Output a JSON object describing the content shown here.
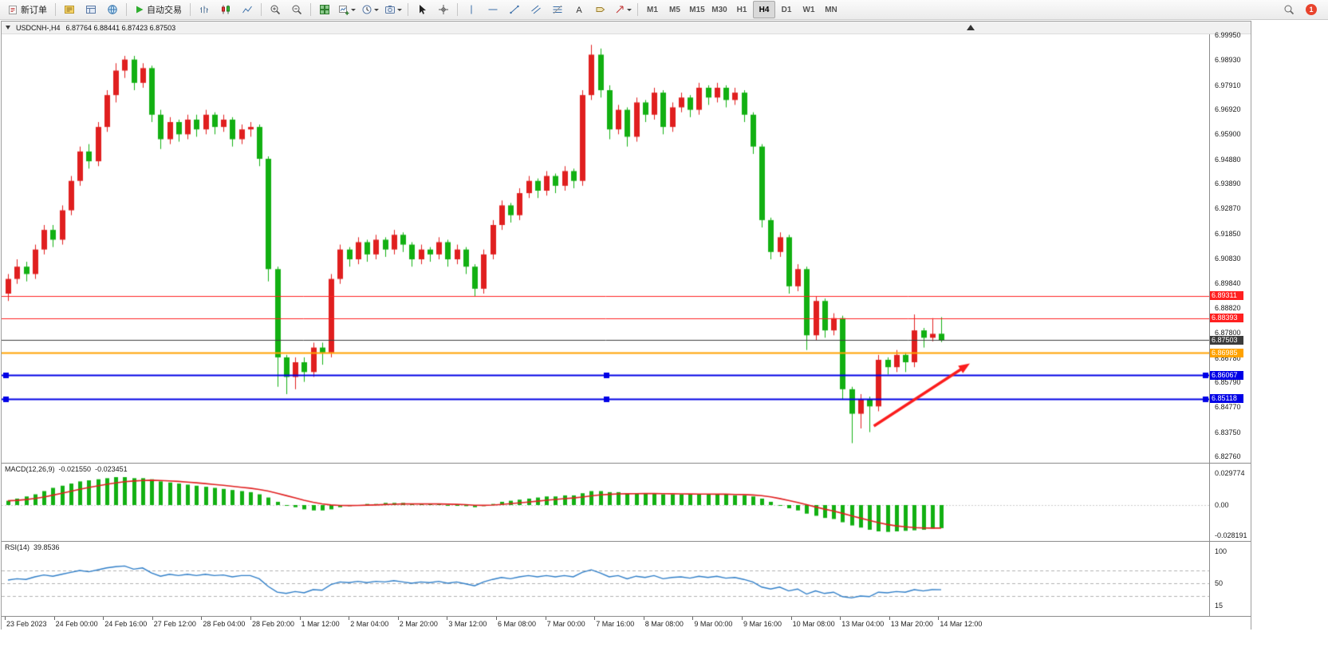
{
  "toolbar": {
    "new_order_label": "新订单",
    "autotrade_label": "自动交易",
    "timeframes": [
      "M1",
      "M5",
      "M15",
      "M30",
      "H1",
      "H4",
      "D1",
      "W1",
      "MN"
    ],
    "active_timeframe": "H4",
    "notification_count": "1",
    "icon_names": [
      "new-order-icon",
      "market-watch-icon",
      "data-window-icon",
      "navigator-icon",
      "play-icon",
      "bar-chart-icon",
      "candlestick-icon",
      "line-chart-icon",
      "zoom-in-icon",
      "zoom-out-icon",
      "tile-windows-icon",
      "new-chart-icon",
      "clock-icon",
      "snapshot-icon",
      "cursor-icon",
      "crosshair-icon",
      "vertical-line-icon",
      "horizontal-line-icon",
      "trendline-icon",
      "channel-icon",
      "fibonacci-icon",
      "text-icon",
      "label-icon",
      "shapes-icon",
      "search-icon"
    ]
  },
  "chart": {
    "title": "USDCNH-,H4",
    "ohlc_text": "6.87764 6.88441 6.87423 6.87503"
  },
  "chart_data": {
    "type": "candlestick",
    "symbol": "USDCNH-",
    "timeframe": "H4",
    "colors": {
      "up": "#e01f1f",
      "down": "#12b012",
      "macd_hist": "#12b012",
      "macd_signal": "#e02020",
      "rsi": "#2f7ec8"
    },
    "price_axis": {
      "min": 6.825,
      "max": 6.9998,
      "ticks": [
        "6.99950",
        "6.98930",
        "6.97910",
        "6.96920",
        "6.95900",
        "6.94880",
        "6.93890",
        "6.92870",
        "6.91850",
        "6.90830",
        "6.89840",
        "6.88820",
        "6.87800",
        "6.86780",
        "6.85790",
        "6.84770",
        "6.83750",
        "6.82760"
      ]
    },
    "candles": [
      [
        6.894,
        6.902,
        6.891,
        6.9
      ],
      [
        6.9,
        6.908,
        6.898,
        6.905
      ],
      [
        6.905,
        6.907,
        6.899,
        6.902
      ],
      [
        6.902,
        6.914,
        6.9,
        6.912
      ],
      [
        6.912,
        6.922,
        6.91,
        6.92
      ],
      [
        6.92,
        6.922,
        6.913,
        6.916
      ],
      [
        6.916,
        6.93,
        6.914,
        6.928
      ],
      [
        6.928,
        6.942,
        6.926,
        6.94
      ],
      [
        6.94,
        6.954,
        6.938,
        6.952
      ],
      [
        6.952,
        6.955,
        6.945,
        6.948
      ],
      [
        6.948,
        6.964,
        6.946,
        6.962
      ],
      [
        6.962,
        6.977,
        6.96,
        6.975
      ],
      [
        6.975,
        6.988,
        6.972,
        6.985
      ],
      [
        6.985,
        6.991,
        6.982,
        6.9895
      ],
      [
        6.9895,
        6.991,
        6.977,
        6.98
      ],
      [
        6.98,
        6.988,
        6.978,
        6.986
      ],
      [
        6.986,
        6.987,
        6.964,
        6.967
      ],
      [
        6.967,
        6.969,
        6.953,
        6.957
      ],
      [
        6.957,
        6.966,
        6.955,
        6.964
      ],
      [
        6.964,
        6.965,
        6.956,
        6.959
      ],
      [
        6.959,
        6.967,
        6.957,
        6.965
      ],
      [
        6.965,
        6.967,
        6.958,
        6.961
      ],
      [
        6.961,
        6.969,
        6.959,
        6.967
      ],
      [
        6.967,
        6.968,
        6.959,
        6.962
      ],
      [
        6.962,
        6.967,
        6.96,
        6.965
      ],
      [
        6.965,
        6.966,
        6.954,
        6.957
      ],
      [
        6.957,
        6.963,
        6.955,
        6.961
      ],
      [
        6.961,
        6.964,
        6.958,
        6.962
      ],
      [
        6.962,
        6.963,
        6.946,
        6.949
      ],
      [
        6.949,
        6.95,
        6.899,
        6.904
      ],
      [
        6.904,
        6.905,
        6.856,
        6.868
      ],
      [
        6.868,
        6.869,
        6.853,
        6.86
      ],
      [
        6.86,
        6.868,
        6.855,
        6.866
      ],
      [
        6.866,
        6.868,
        6.858,
        6.862
      ],
      [
        6.862,
        6.874,
        6.86,
        6.872
      ],
      [
        6.872,
        6.874,
        6.865,
        6.87
      ],
      [
        6.87,
        6.902,
        6.868,
        6.9
      ],
      [
        6.9,
        6.914,
        6.898,
        6.912
      ],
      [
        6.912,
        6.913,
        6.905,
        6.908
      ],
      [
        6.908,
        6.917,
        6.906,
        6.915
      ],
      [
        6.915,
        6.916,
        6.907,
        6.91
      ],
      [
        6.91,
        6.918,
        6.908,
        6.916
      ],
      [
        6.916,
        6.917,
        6.909,
        6.912
      ],
      [
        6.912,
        6.92,
        6.91,
        6.918
      ],
      [
        6.918,
        6.919,
        6.911,
        6.914
      ],
      [
        6.914,
        6.915,
        6.905,
        6.908
      ],
      [
        6.908,
        6.914,
        6.906,
        6.912
      ],
      [
        6.912,
        6.913,
        6.907,
        6.91
      ],
      [
        6.91,
        6.917,
        6.908,
        6.915
      ],
      [
        6.915,
        6.916,
        6.905,
        6.908
      ],
      [
        6.908,
        6.914,
        6.906,
        6.912
      ],
      [
        6.912,
        6.913,
        6.902,
        6.905
      ],
      [
        6.905,
        6.906,
        6.893,
        6.896
      ],
      [
        6.896,
        6.912,
        6.894,
        6.91
      ],
      [
        6.91,
        6.924,
        6.908,
        6.922
      ],
      [
        6.922,
        6.932,
        6.92,
        6.93
      ],
      [
        6.93,
        6.931,
        6.923,
        6.926
      ],
      [
        6.926,
        6.937,
        6.924,
        6.935
      ],
      [
        6.935,
        6.942,
        6.933,
        6.94
      ],
      [
        6.94,
        6.941,
        6.933,
        6.936
      ],
      [
        6.936,
        6.944,
        6.934,
        6.942
      ],
      [
        6.942,
        6.943,
        6.935,
        6.938
      ],
      [
        6.938,
        6.946,
        6.936,
        6.944
      ],
      [
        6.944,
        6.945,
        6.937,
        6.94
      ],
      [
        6.94,
        6.977,
        6.938,
        6.975
      ],
      [
        6.975,
        6.9955,
        6.973,
        6.9915
      ],
      [
        6.9915,
        6.994,
        6.974,
        6.977
      ],
      [
        6.977,
        6.979,
        6.957,
        6.961
      ],
      [
        6.961,
        6.971,
        6.959,
        6.969
      ],
      [
        6.969,
        6.97,
        6.954,
        6.958
      ],
      [
        6.958,
        6.974,
        6.956,
        6.972
      ],
      [
        6.972,
        6.973,
        6.964,
        6.967
      ],
      [
        6.967,
        6.978,
        6.965,
        6.976
      ],
      [
        6.976,
        6.977,
        6.959,
        6.962
      ],
      [
        6.962,
        6.972,
        6.96,
        6.97
      ],
      [
        6.97,
        6.976,
        6.968,
        6.974
      ],
      [
        6.974,
        6.975,
        6.966,
        6.969
      ],
      [
        6.969,
        6.98,
        6.967,
        6.978
      ],
      [
        6.978,
        6.979,
        6.971,
        6.974
      ],
      [
        6.974,
        6.98,
        6.972,
        6.978
      ],
      [
        6.978,
        6.979,
        6.97,
        6.973
      ],
      [
        6.973,
        6.978,
        6.971,
        6.976
      ],
      [
        6.976,
        6.977,
        6.964,
        6.967
      ],
      [
        6.967,
        6.968,
        6.951,
        6.954
      ],
      [
        6.954,
        6.955,
        6.921,
        6.924
      ],
      [
        6.924,
        6.925,
        6.908,
        6.911
      ],
      [
        6.911,
        6.919,
        6.909,
        6.917
      ],
      [
        6.917,
        6.918,
        6.894,
        6.897
      ],
      [
        6.897,
        6.906,
        6.895,
        6.904
      ],
      [
        6.904,
        6.905,
        6.871,
        6.877
      ],
      [
        6.877,
        6.893,
        6.875,
        6.891
      ],
      [
        6.891,
        6.892,
        6.876,
        6.879
      ],
      [
        6.879,
        6.886,
        6.877,
        6.884
      ],
      [
        6.884,
        6.885,
        6.851,
        6.855
      ],
      [
        6.855,
        6.856,
        6.833,
        6.845
      ],
      [
        6.845,
        6.853,
        6.839,
        6.851
      ],
      [
        6.851,
        6.852,
        6.8375,
        6.848
      ],
      [
        6.848,
        6.869,
        6.846,
        6.867
      ],
      [
        6.867,
        6.868,
        6.861,
        6.864
      ],
      [
        6.864,
        6.871,
        6.862,
        6.869
      ],
      [
        6.869,
        6.87,
        6.862,
        6.866
      ],
      [
        6.866,
        6.8855,
        6.864,
        6.879
      ],
      [
        6.879,
        6.88,
        6.872,
        6.876
      ],
      [
        6.876,
        6.884,
        6.8745,
        6.8776
      ],
      [
        6.87764,
        6.88441,
        6.87423,
        6.87503
      ]
    ],
    "hlines": [
      {
        "price": 6.89311,
        "label": "6.89311",
        "color": "#ff2020",
        "width": 1
      },
      {
        "price": 6.88393,
        "label": "6.88393",
        "color": "#ff2020",
        "width": 1
      },
      {
        "price": 6.87503,
        "label": "6.87503",
        "color": "#3c3c3c",
        "width": 1
      },
      {
        "price": 6.86985,
        "label": "6.86985",
        "color": "#ffa200",
        "width": 2
      },
      {
        "price": 6.86067,
        "label": "6.86067",
        "color": "#0000e6",
        "width": 2,
        "handles": true
      },
      {
        "price": 6.85118,
        "label": "6.85118",
        "color": "#0000e6",
        "width": 2,
        "handles": true
      }
    ],
    "arrow": {
      "from_bar": 96.5,
      "from_price": 6.84,
      "to_bar": 107.2,
      "to_price": 6.8655,
      "color": "#fb1d1d"
    },
    "time_axis": [
      "23 Feb 2023",
      "24 Feb 00:00",
      "24 Feb 16:00",
      "27 Feb 12:00",
      "28 Feb 04:00",
      "28 Feb 20:00",
      "1 Mar 12:00",
      "2 Mar 04:00",
      "2 Mar 20:00",
      "3 Mar 12:00",
      "6 Mar 08:00",
      "7 Mar 00:00",
      "7 Mar 16:00",
      "8 Mar 08:00",
      "9 Mar 00:00",
      "9 Mar 16:00",
      "10 Mar 08:00",
      "13 Mar 04:00",
      "13 Mar 20:00",
      "14 Mar 12:00"
    ],
    "macd": {
      "label": "MACD(12,26,9)",
      "main_value": "-0.021550",
      "signal_value": "-0.023451",
      "ticks": [
        "0.029774",
        "0.00",
        "-0.028191"
      ],
      "values": [
        0.004,
        0.006,
        0.008,
        0.01,
        0.013,
        0.016,
        0.018,
        0.02,
        0.022,
        0.023,
        0.024,
        0.025,
        0.026,
        0.026,
        0.025,
        0.025,
        0.024,
        0.022,
        0.021,
        0.02,
        0.019,
        0.018,
        0.017,
        0.016,
        0.015,
        0.014,
        0.013,
        0.012,
        0.01,
        0.007,
        0.003,
        0.0,
        -0.002,
        -0.004,
        -0.005,
        -0.005,
        -0.004,
        -0.002,
        -0.001,
        0.0,
        0.001,
        0.001,
        0.002,
        0.002,
        0.002,
        0.001,
        0.001,
        0.001,
        0.001,
        0.0,
        0.0,
        -0.001,
        -0.002,
        -0.001,
        0.001,
        0.003,
        0.004,
        0.005,
        0.006,
        0.007,
        0.008,
        0.008,
        0.009,
        0.009,
        0.011,
        0.013,
        0.013,
        0.012,
        0.012,
        0.011,
        0.011,
        0.011,
        0.011,
        0.01,
        0.01,
        0.01,
        0.01,
        0.01,
        0.01,
        0.01,
        0.01,
        0.009,
        0.009,
        0.008,
        0.006,
        0.003,
        0.0,
        -0.003,
        -0.005,
        -0.008,
        -0.01,
        -0.012,
        -0.013,
        -0.016,
        -0.019,
        -0.021,
        -0.023,
        -0.0245,
        -0.025,
        -0.0245,
        -0.024,
        -0.0235,
        -0.023,
        -0.022,
        -0.0215
      ]
    },
    "rsi": {
      "label": "RSI(14)",
      "value": "39.8536",
      "ticks": [
        "100",
        "50",
        "15"
      ],
      "levels": [
        70,
        50,
        30
      ],
      "values": [
        55,
        57,
        56,
        60,
        63,
        61,
        64,
        67,
        70,
        68,
        71,
        74,
        76,
        77,
        72,
        74,
        66,
        61,
        64,
        62,
        64,
        62,
        64,
        62,
        63,
        60,
        62,
        62,
        57,
        45,
        36,
        34,
        37,
        35,
        40,
        39,
        48,
        52,
        51,
        53,
        51,
        53,
        52,
        54,
        52,
        50,
        52,
        51,
        53,
        50,
        52,
        49,
        46,
        52,
        56,
        59,
        57,
        60,
        62,
        60,
        62,
        60,
        62,
        60,
        67,
        71,
        66,
        60,
        62,
        57,
        61,
        59,
        62,
        57,
        59,
        60,
        58,
        61,
        59,
        61,
        58,
        59,
        56,
        52,
        44,
        41,
        44,
        38,
        41,
        33,
        38,
        34,
        36,
        29,
        27,
        30,
        29,
        36,
        35,
        37,
        36,
        40,
        38,
        40,
        39.85
      ]
    }
  }
}
